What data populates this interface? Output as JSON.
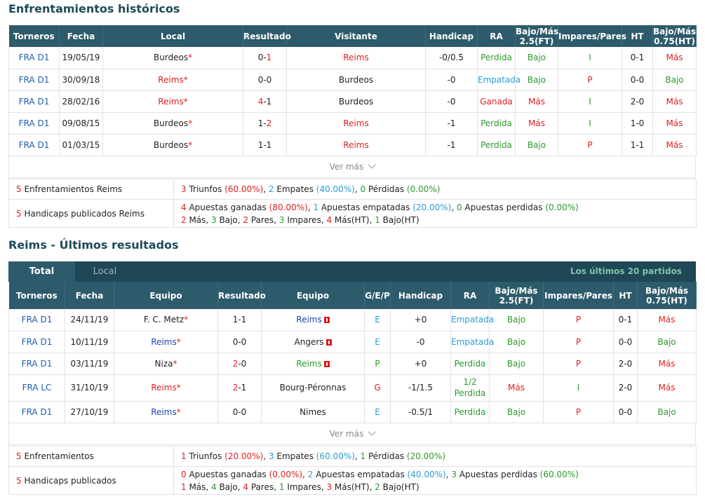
{
  "h2h": {
    "title": "Enfrentamientos históricos",
    "headers": [
      "Torneros",
      "Fecha",
      "Local",
      "Resultado",
      "Visitante",
      "Handicap",
      "RA",
      "Bajo/Más 2.5(FT)",
      "Impares/Pares",
      "HT",
      "Bajo/Más 0.75(HT)"
    ],
    "rows": [
      {
        "league": "FRA D1",
        "date": "19/05/19",
        "home": "Burdeos",
        "home_star": "*",
        "score_a": "0",
        "score_b": "1",
        "away": "Reims",
        "handicap": "-0/0.5",
        "ra": "Perdida",
        "ou": "Bajo",
        "oe": "I",
        "ht": "0-1",
        "ht_ou": "Más"
      },
      {
        "league": "FRA D1",
        "date": "30/09/18",
        "home": "Reims",
        "home_star": "*",
        "score_a": "0",
        "score_b": "0",
        "away": "Burdeos",
        "handicap": "-0",
        "ra": "Empatada",
        "ou": "Bajo",
        "oe": "P",
        "ht": "0-0",
        "ht_ou": "Bajo"
      },
      {
        "league": "FRA D1",
        "date": "28/02/16",
        "home": "Reims",
        "home_star": "*",
        "score_a": "4",
        "score_b": "1",
        "away": "Burdeos",
        "handicap": "-0",
        "ra": "Ganada",
        "ou": "Más",
        "oe": "I",
        "ht": "2-0",
        "ht_ou": "Más"
      },
      {
        "league": "FRA D1",
        "date": "09/08/15",
        "home": "Burdeos",
        "home_star": "*",
        "score_a": "1",
        "score_b": "2",
        "away": "Reims",
        "handicap": "-1",
        "ra": "Perdida",
        "ou": "Más",
        "oe": "I",
        "ht": "1-0",
        "ht_ou": "Más"
      },
      {
        "league": "FRA D1",
        "date": "01/03/15",
        "home": "Burdeos",
        "home_star": "*",
        "score_a": "1",
        "score_b": "1",
        "away": "Reims",
        "handicap": "-1",
        "ra": "Perdida",
        "ou": "Bajo",
        "oe": "P",
        "ht": "1-1",
        "ht_ou": "Más"
      }
    ],
    "ver_mas": "Ver más",
    "summary": {
      "row1_n": "5",
      "row1_label": " Enfrentamientos Reims",
      "row1_parts": [
        {
          "t": "3",
          "c": "red"
        },
        {
          "t": " Triunfos ",
          "c": "dark"
        },
        {
          "t": "(60.00%)",
          "c": "red"
        },
        {
          "t": ", ",
          "c": "dark"
        },
        {
          "t": "2",
          "c": "cyan"
        },
        {
          "t": " Empates ",
          "c": "dark"
        },
        {
          "t": "(40.00%)",
          "c": "cyan"
        },
        {
          "t": ", ",
          "c": "dark"
        },
        {
          "t": "0",
          "c": "green"
        },
        {
          "t": " Pérdidas ",
          "c": "dark"
        },
        {
          "t": "(0.00%)",
          "c": "green"
        }
      ],
      "row2_n": "5",
      "row2_label": " Handicaps publicados Reims",
      "row2_line1": [
        {
          "t": "4",
          "c": "red"
        },
        {
          "t": " Apuestas ganadas ",
          "c": "dark"
        },
        {
          "t": "(80.00%)",
          "c": "red"
        },
        {
          "t": ", ",
          "c": "dark"
        },
        {
          "t": "1",
          "c": "cyan"
        },
        {
          "t": " Apuestas empatadas ",
          "c": "dark"
        },
        {
          "t": "(20.00%)",
          "c": "cyan"
        },
        {
          "t": ", ",
          "c": "dark"
        },
        {
          "t": "0",
          "c": "green"
        },
        {
          "t": " Apuestas perdidas ",
          "c": "dark"
        },
        {
          "t": "(0.00%)",
          "c": "green"
        }
      ],
      "row2_line2": [
        {
          "t": "2",
          "c": "red"
        },
        {
          "t": " Más, ",
          "c": "dark"
        },
        {
          "t": "3",
          "c": "green"
        },
        {
          "t": " Bajo, ",
          "c": "dark"
        },
        {
          "t": "2",
          "c": "red"
        },
        {
          "t": " Pares, ",
          "c": "dark"
        },
        {
          "t": "3",
          "c": "green"
        },
        {
          "t": " Impares, ",
          "c": "dark"
        },
        {
          "t": "4",
          "c": "red"
        },
        {
          "t": " Más(HT), ",
          "c": "dark"
        },
        {
          "t": "1",
          "c": "green"
        },
        {
          "t": " Bajo(HT)",
          "c": "dark"
        }
      ]
    }
  },
  "recent": {
    "title": "Reims - Últimos resultados",
    "tabs": {
      "total": "Total",
      "local": "Local",
      "right": "Los últimos 20 partidos"
    },
    "headers": [
      "Torneros",
      "Fecha",
      "Equipo",
      "Resultado",
      "Equipo",
      "G/E/P",
      "Handicap",
      "RA",
      "Bajo/Más 2.5(FT)",
      "Impares/Pares",
      "HT",
      "Bajo/Más 0.75(HT)"
    ],
    "rows": [
      {
        "league": "FRA D1",
        "date": "24/11/19",
        "home": "F. C. Metz",
        "home_star": "*",
        "home_color": "dark",
        "score_a": "1",
        "score_b": "1",
        "away": "Reims",
        "away_color": "blue",
        "away_flag": true,
        "gep": "E",
        "handicap": "+0",
        "ra": "Empatada",
        "ou": "Bajo",
        "oe": "P",
        "ht": "0-1",
        "ht_ou": "Más"
      },
      {
        "league": "FRA D1",
        "date": "10/11/19",
        "home": "Reims",
        "home_star": "*",
        "home_color": "blue",
        "score_a": "0",
        "score_b": "0",
        "away": "Angers",
        "away_color": "dark",
        "away_flag": true,
        "gep": "E",
        "handicap": "-0",
        "ra": "Empatada",
        "ou": "Bajo",
        "oe": "P",
        "ht": "0-0",
        "ht_ou": "Bajo"
      },
      {
        "league": "FRA D1",
        "date": "03/11/19",
        "home": "Niza",
        "home_star": "*",
        "home_color": "dark",
        "score_a": "2",
        "score_b": "0",
        "away": "Reims",
        "away_color": "green",
        "away_flag": true,
        "gep": "P",
        "handicap": "+0",
        "ra": "Perdida",
        "ou": "Bajo",
        "oe": "P",
        "ht": "2-0",
        "ht_ou": "Más"
      },
      {
        "league": "FRA LC",
        "date": "31/10/19",
        "home": "Reims",
        "home_star": "*",
        "home_color": "red",
        "score_a": "2",
        "score_b": "1",
        "away": "Bourg-Péronnas",
        "away_color": "dark",
        "away_flag": false,
        "gep": "G",
        "handicap": "-1/1.5",
        "ra": "1/2 Perdida",
        "ou": "Más",
        "oe": "I",
        "ht": "2-0",
        "ht_ou": "Más"
      },
      {
        "league": "FRA D1",
        "date": "27/10/19",
        "home": "Reims",
        "home_star": "*",
        "home_color": "blue",
        "score_a": "0",
        "score_b": "0",
        "away": "Nimes",
        "away_color": "dark",
        "away_flag": false,
        "gep": "E",
        "handicap": "-0.5/1",
        "ra": "Perdida",
        "ou": "Bajo",
        "oe": "P",
        "ht": "0-0",
        "ht_ou": "Bajo"
      }
    ],
    "ver_mas": "Ver más",
    "summary": {
      "row1_n": "5",
      "row1_label": " Enfrentamientos",
      "row1_parts": [
        {
          "t": "1",
          "c": "red"
        },
        {
          "t": " Triunfos ",
          "c": "dark"
        },
        {
          "t": "(20.00%)",
          "c": "red"
        },
        {
          "t": ", ",
          "c": "dark"
        },
        {
          "t": "3",
          "c": "cyan"
        },
        {
          "t": " Empates ",
          "c": "dark"
        },
        {
          "t": "(60.00%)",
          "c": "cyan"
        },
        {
          "t": ", ",
          "c": "dark"
        },
        {
          "t": "1",
          "c": "green"
        },
        {
          "t": " Pérdidas ",
          "c": "dark"
        },
        {
          "t": "(20.00%)",
          "c": "green"
        }
      ],
      "row2_n": "5",
      "row2_label": " Handicaps publicados",
      "row2_line1": [
        {
          "t": "0",
          "c": "red"
        },
        {
          "t": " Apuestas ganadas ",
          "c": "dark"
        },
        {
          "t": "(0.00%)",
          "c": "red"
        },
        {
          "t": ", ",
          "c": "dark"
        },
        {
          "t": "2",
          "c": "cyan"
        },
        {
          "t": " Apuestas empatadas ",
          "c": "dark"
        },
        {
          "t": "(40.00%)",
          "c": "cyan"
        },
        {
          "t": ", ",
          "c": "dark"
        },
        {
          "t": "3",
          "c": "green"
        },
        {
          "t": " Apuestas perdidas ",
          "c": "dark"
        },
        {
          "t": "(60.00%)",
          "c": "green"
        }
      ],
      "row2_line2": [
        {
          "t": "1",
          "c": "red"
        },
        {
          "t": " Más, ",
          "c": "dark"
        },
        {
          "t": "4",
          "c": "green"
        },
        {
          "t": " Bajo, ",
          "c": "dark"
        },
        {
          "t": "4",
          "c": "red"
        },
        {
          "t": " Pares, ",
          "c": "dark"
        },
        {
          "t": "1",
          "c": "green"
        },
        {
          "t": " Impares, ",
          "c": "dark"
        },
        {
          "t": "3",
          "c": "red"
        },
        {
          "t": " Más(HT), ",
          "c": "dark"
        },
        {
          "t": "2",
          "c": "green"
        },
        {
          "t": " Bajo(HT)",
          "c": "dark"
        }
      ]
    }
  },
  "colors": {
    "header_bg": "#2d5b6b",
    "red": "#e02020",
    "green": "#2a9a2a",
    "cyan": "#2a9dd6",
    "blue": "#1a3fb4",
    "league": "#1f5fb0",
    "title": "#1f4a5a"
  }
}
